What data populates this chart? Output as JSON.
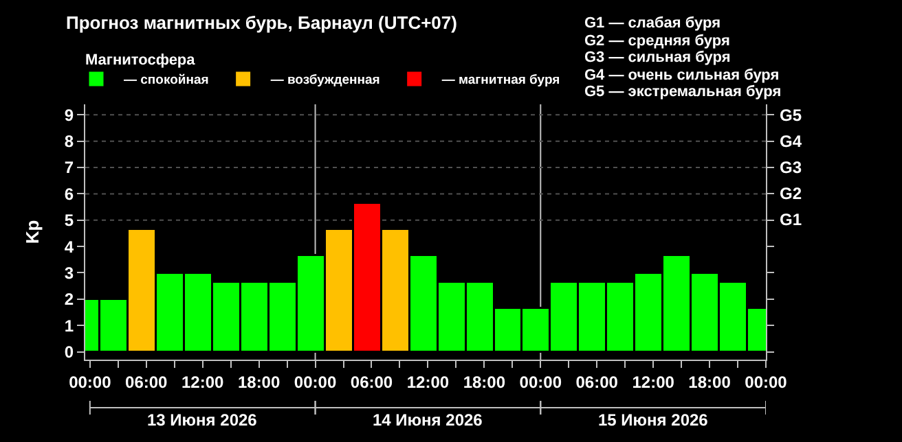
{
  "chart_data": {
    "type": "bar",
    "title": "Прогноз магнитных бурь, Барнаул (UTC+07)",
    "ylabel": "Kp",
    "legend_title": "Магнитосфера",
    "x": [
      "2026-06-12T23:30",
      "2026-06-13T02:30",
      "2026-06-13T05:30",
      "2026-06-13T08:30",
      "2026-06-13T11:30",
      "2026-06-13T14:30",
      "2026-06-13T17:30",
      "2026-06-13T20:30",
      "2026-06-13T23:30",
      "2026-06-14T02:30",
      "2026-06-14T05:30",
      "2026-06-14T08:30",
      "2026-06-14T11:30",
      "2026-06-14T14:30",
      "2026-06-14T17:30",
      "2026-06-14T20:30",
      "2026-06-14T23:30",
      "2026-06-15T02:30",
      "2026-06-15T05:30",
      "2026-06-15T08:30",
      "2026-06-15T11:30",
      "2026-06-15T14:30",
      "2026-06-15T17:30",
      "2026-06-15T20:30",
      "2026-06-15T23:30"
    ],
    "series": [
      {
        "name": "— спокойная",
        "color": "#00ff00",
        "values": [
          2,
          2,
          null,
          3,
          3,
          2.67,
          2.67,
          2.67,
          3.67,
          null,
          null,
          null,
          3.67,
          2.67,
          2.67,
          1.67,
          1.67,
          2.67,
          2.67,
          2.67,
          3,
          3.67,
          3,
          2.67,
          1.67
        ]
      },
      {
        "name": "— возбужденная",
        "color": "#ffc000",
        "values": [
          null,
          null,
          4.67,
          null,
          null,
          null,
          null,
          null,
          null,
          4.67,
          null,
          4.67,
          null,
          null,
          null,
          null,
          null,
          null,
          null,
          null,
          null,
          null,
          null,
          null,
          null
        ]
      },
      {
        "name": "— магнитная буря",
        "color": "#ff0000",
        "values": [
          null,
          null,
          null,
          null,
          null,
          null,
          null,
          null,
          null,
          null,
          5.67,
          null,
          null,
          null,
          null,
          null,
          null,
          null,
          null,
          null,
          null,
          null,
          null,
          null,
          null
        ]
      }
    ],
    "stacked": true,
    "xlim": [
      "2026-06-12T23:30",
      "2026-06-16T00:00"
    ],
    "xticks": [
      {
        "value": "2026-06-13T00:00",
        "label": "00:00"
      },
      {
        "value": "2026-06-13T03:00",
        "label": null
      },
      {
        "value": "2026-06-13T06:00",
        "label": "06:00"
      },
      {
        "value": "2026-06-13T09:00",
        "label": null
      },
      {
        "value": "2026-06-13T12:00",
        "label": "12:00"
      },
      {
        "value": "2026-06-13T15:00",
        "label": null
      },
      {
        "value": "2026-06-13T18:00",
        "label": "18:00"
      },
      {
        "value": "2026-06-13T21:00",
        "label": null
      },
      {
        "value": "2026-06-14T00:00",
        "label": "00:00"
      },
      {
        "value": "2026-06-14T03:00",
        "label": null
      },
      {
        "value": "2026-06-14T06:00",
        "label": "06:00"
      },
      {
        "value": "2026-06-14T09:00",
        "label": null
      },
      {
        "value": "2026-06-14T12:00",
        "label": "12:00"
      },
      {
        "value": "2026-06-14T15:00",
        "label": null
      },
      {
        "value": "2026-06-14T18:00",
        "label": "18:00"
      },
      {
        "value": "2026-06-14T21:00",
        "label": null
      },
      {
        "value": "2026-06-15T00:00",
        "label": "00:00"
      },
      {
        "value": "2026-06-15T03:00",
        "label": null
      },
      {
        "value": "2026-06-15T06:00",
        "label": "06:00"
      },
      {
        "value": "2026-06-15T09:00",
        "label": null
      },
      {
        "value": "2026-06-15T12:00",
        "label": "12:00"
      },
      {
        "value": "2026-06-15T15:00",
        "label": null
      },
      {
        "value": "2026-06-15T18:00",
        "label": "18:00"
      },
      {
        "value": "2026-06-15T21:00",
        "label": null
      },
      {
        "value": "2026-06-16T00:00",
        "label": "00:00"
      }
    ],
    "ylim": [
      -0.3,
      9.4
    ],
    "yticks": [
      0,
      1,
      2,
      3,
      4,
      5,
      6,
      7,
      8,
      9
    ],
    "ref_lines": [
      {
        "axis": "x",
        "value": "2026-06-14T00:00",
        "color": "#c0c0c0",
        "line_style": "solid"
      },
      {
        "axis": "x",
        "value": "2026-06-15T00:00",
        "color": "#c0c0c0",
        "line_style": "solid"
      },
      {
        "axis": "y",
        "value": 5,
        "label": "G1",
        "color": "#505050",
        "line_style": "dotted"
      },
      {
        "axis": "y",
        "value": 6,
        "label": "G2",
        "color": "#505050",
        "line_style": "dotted"
      },
      {
        "axis": "y",
        "value": 7,
        "label": "G3",
        "color": "#505050",
        "line_style": "dotted"
      },
      {
        "axis": "y",
        "value": 8,
        "label": "G4",
        "color": "#505050",
        "line_style": "dotted"
      },
      {
        "axis": "y",
        "value": 9,
        "label": "G5",
        "color": "#505050",
        "line_style": "dotted"
      }
    ],
    "annotations": [
      "G1 — слабая буря",
      "G2 — средняя буря",
      "G3 — сильная буря",
      "G4 — очень сильная буря",
      "G5 — экстремальная буря",
      "13 Июня 2026",
      "14 Июня 2026",
      "15 Июня 2026"
    ],
    "grid": false,
    "legend": "top"
  }
}
